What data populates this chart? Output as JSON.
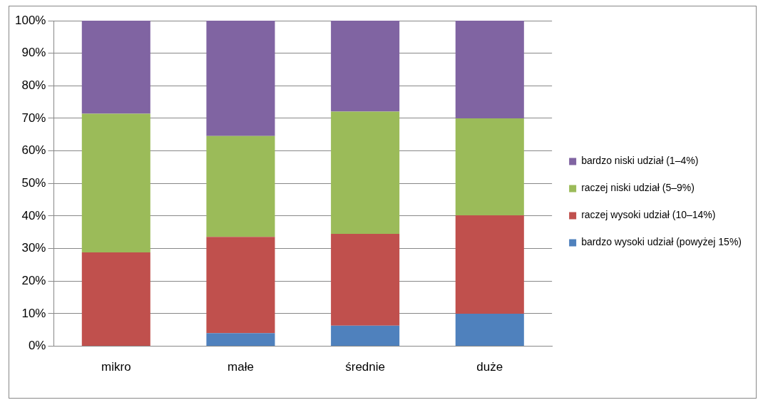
{
  "chart_data": {
    "type": "bar",
    "stacked": true,
    "categories": [
      "mikro",
      "małe",
      "średnie",
      "duże"
    ],
    "series": [
      {
        "name": "bardzo wysoki udział (powyżej 15%)",
        "color": "#4f81bd",
        "values": [
          0,
          4,
          6.3,
          10
        ]
      },
      {
        "name": "raczej wysoki udział (10–14%)",
        "color": "#c0504d",
        "values": [
          28.8,
          29.6,
          28.2,
          30.2
        ]
      },
      {
        "name": "raczej niski udział (5–9%)",
        "color": "#9bbb59",
        "values": [
          42.6,
          31,
          37.6,
          29.8
        ]
      },
      {
        "name": "bardzo niski udział (1–4%)",
        "color": "#8064a2",
        "values": [
          28.6,
          35.4,
          27.9,
          30
        ]
      }
    ],
    "ylim": [
      0,
      100
    ],
    "yticks": [
      {
        "value": 0,
        "label": "0%"
      },
      {
        "value": 10,
        "label": "10%"
      },
      {
        "value": 20,
        "label": "20%"
      },
      {
        "value": 30,
        "label": "30%"
      },
      {
        "value": 40,
        "label": "40%"
      },
      {
        "value": 50,
        "label": "50%"
      },
      {
        "value": 60,
        "label": "60%"
      },
      {
        "value": 70,
        "label": "70%"
      },
      {
        "value": 80,
        "label": "80%"
      },
      {
        "value": 90,
        "label": "90%"
      },
      {
        "value": 100,
        "label": "100%"
      }
    ],
    "grid": "y",
    "legend": "right"
  }
}
